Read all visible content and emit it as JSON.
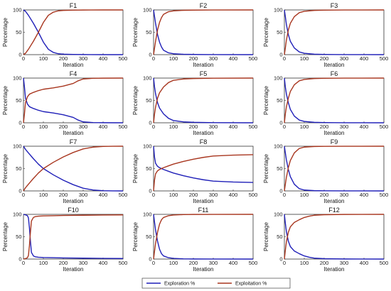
{
  "colors": {
    "exploration": "#1f1fb8",
    "exploitation": "#a8361f",
    "axis": "#333333"
  },
  "chart_data": [
    {
      "type": "line",
      "title": "F1",
      "xlabel": "Iteration",
      "ylabel": "Percentage",
      "xlim": [
        0,
        500
      ],
      "ylim": [
        0,
        100
      ],
      "xticks": [
        "0",
        "100",
        "200",
        "300",
        "400",
        "500"
      ],
      "yticks": [
        "0",
        "50",
        "100"
      ],
      "series": [
        {
          "name": "Exploration %",
          "x": [
            0,
            10,
            25,
            50,
            75,
            100,
            125,
            150,
            175,
            200,
            250,
            300,
            400,
            500
          ],
          "values": [
            100,
            97,
            88,
            70,
            50,
            28,
            12,
            5,
            2,
            1,
            0.5,
            0.2,
            0,
            0
          ]
        },
        {
          "name": "Exploitation %",
          "x": [
            0,
            10,
            25,
            50,
            75,
            100,
            125,
            150,
            175,
            200,
            250,
            300,
            400,
            500
          ],
          "values": [
            0,
            3,
            12,
            30,
            50,
            72,
            88,
            95,
            98,
            99,
            99.5,
            99.8,
            100,
            100
          ]
        }
      ]
    },
    {
      "type": "line",
      "title": "F2",
      "xlabel": "Iteration",
      "ylabel": "Percentage",
      "xlim": [
        0,
        500
      ],
      "ylim": [
        0,
        100
      ],
      "xticks": [
        "0",
        "100",
        "200",
        "300",
        "400",
        "500"
      ],
      "yticks": [
        "0",
        "50",
        "100"
      ],
      "series": [
        {
          "name": "Exploration %",
          "x": [
            0,
            5,
            10,
            20,
            30,
            40,
            50,
            75,
            100,
            150,
            200,
            300,
            500
          ],
          "values": [
            100,
            85,
            70,
            45,
            28,
            17,
            10,
            4,
            2,
            0.8,
            0.4,
            0.1,
            0
          ]
        },
        {
          "name": "Exploitation %",
          "x": [
            0,
            5,
            10,
            20,
            30,
            40,
            50,
            75,
            100,
            150,
            200,
            300,
            500
          ],
          "values": [
            0,
            15,
            30,
            55,
            72,
            83,
            90,
            96,
            98,
            99.2,
            99.6,
            99.9,
            100
          ]
        }
      ]
    },
    {
      "type": "line",
      "title": "F3",
      "xlabel": "Iteration",
      "ylabel": "Percentage",
      "xlim": [
        0,
        500
      ],
      "ylim": [
        0,
        100
      ],
      "xticks": [
        "0",
        "100",
        "200",
        "300",
        "400",
        "500"
      ],
      "yticks": [
        "0",
        "50",
        "100"
      ],
      "series": [
        {
          "name": "Exploration %",
          "x": [
            0,
            5,
            10,
            20,
            30,
            50,
            75,
            100,
            150,
            200,
            300,
            500
          ],
          "values": [
            100,
            85,
            68,
            45,
            30,
            15,
            6,
            3,
            1,
            0.5,
            0.1,
            0
          ]
        },
        {
          "name": "Exploitation %",
          "x": [
            0,
            5,
            10,
            20,
            30,
            50,
            75,
            100,
            150,
            200,
            300,
            500
          ],
          "values": [
            0,
            15,
            32,
            55,
            70,
            85,
            94,
            97,
            99,
            99.5,
            99.9,
            100
          ]
        }
      ]
    },
    {
      "type": "line",
      "title": "F4",
      "xlabel": "Iteration",
      "ylabel": "Percentage",
      "xlim": [
        0,
        500
      ],
      "ylim": [
        0,
        100
      ],
      "xticks": [
        "0",
        "100",
        "200",
        "300",
        "400",
        "500"
      ],
      "yticks": [
        "0",
        "50",
        "100"
      ],
      "series": [
        {
          "name": "Exploration %",
          "x": [
            0,
            5,
            10,
            20,
            30,
            50,
            75,
            100,
            150,
            200,
            250,
            275,
            300,
            350,
            400,
            500
          ],
          "values": [
            100,
            80,
            55,
            42,
            36,
            32,
            28,
            25,
            22,
            18,
            12,
            6,
            2,
            0.5,
            0.2,
            0
          ]
        },
        {
          "name": "Exploitation %",
          "x": [
            0,
            5,
            10,
            20,
            30,
            50,
            75,
            100,
            150,
            200,
            250,
            275,
            300,
            350,
            400,
            500
          ],
          "values": [
            0,
            20,
            45,
            58,
            64,
            68,
            72,
            75,
            78,
            82,
            88,
            94,
            98,
            99.5,
            99.8,
            100
          ]
        }
      ]
    },
    {
      "type": "line",
      "title": "F5",
      "xlabel": "Iteration",
      "ylabel": "Percentage",
      "xlim": [
        0,
        500
      ],
      "ylim": [
        0,
        100
      ],
      "xticks": [
        "0",
        "100",
        "200",
        "300",
        "400",
        "500"
      ],
      "yticks": [
        "0",
        "50",
        "100"
      ],
      "series": [
        {
          "name": "Exploration %",
          "x": [
            0,
            5,
            10,
            20,
            30,
            50,
            75,
            100,
            150,
            200,
            300,
            500
          ],
          "values": [
            100,
            80,
            65,
            45,
            33,
            20,
            10,
            5,
            2,
            1,
            0.3,
            0
          ]
        },
        {
          "name": "Exploitation %",
          "x": [
            0,
            5,
            10,
            20,
            30,
            50,
            75,
            100,
            150,
            200,
            300,
            500
          ],
          "values": [
            0,
            20,
            35,
            55,
            67,
            80,
            90,
            95,
            98,
            99,
            99.7,
            100
          ]
        }
      ]
    },
    {
      "type": "line",
      "title": "F6",
      "xlabel": "Iteration",
      "ylabel": "Percentage",
      "xlim": [
        0,
        500
      ],
      "ylim": [
        0,
        100
      ],
      "xticks": [
        "0",
        "100",
        "200",
        "300",
        "400",
        "500"
      ],
      "yticks": [
        "0",
        "50",
        "100"
      ],
      "series": [
        {
          "name": "Exploration %",
          "x": [
            0,
            5,
            10,
            20,
            30,
            50,
            75,
            100,
            150,
            200,
            300,
            500
          ],
          "values": [
            100,
            80,
            65,
            45,
            30,
            15,
            6,
            3,
            1,
            0.5,
            0.1,
            0
          ]
        },
        {
          "name": "Exploitation %",
          "x": [
            0,
            5,
            10,
            20,
            30,
            50,
            75,
            100,
            150,
            200,
            300,
            500
          ],
          "values": [
            0,
            20,
            35,
            55,
            70,
            85,
            94,
            97,
            99,
            99.5,
            99.9,
            100
          ]
        }
      ]
    },
    {
      "type": "line",
      "title": "F7",
      "xlabel": "Iteration",
      "ylabel": "Percentage",
      "xlim": [
        0,
        500
      ],
      "ylim": [
        0,
        100
      ],
      "xticks": [
        "0",
        "100",
        "200",
        "300",
        "400",
        "500"
      ],
      "yticks": [
        "0",
        "50",
        "100"
      ],
      "series": [
        {
          "name": "Exploration %",
          "x": [
            0,
            10,
            25,
            50,
            75,
            100,
            150,
            200,
            250,
            300,
            350,
            400,
            450,
            500
          ],
          "values": [
            100,
            93,
            85,
            72,
            60,
            50,
            36,
            24,
            14,
            6,
            2,
            0.5,
            0.1,
            0
          ]
        },
        {
          "name": "Exploitation %",
          "x": [
            0,
            10,
            25,
            50,
            75,
            100,
            150,
            200,
            250,
            300,
            350,
            400,
            450,
            500
          ],
          "values": [
            0,
            7,
            15,
            28,
            40,
            50,
            64,
            76,
            86,
            94,
            98,
            99.5,
            99.9,
            100
          ]
        }
      ]
    },
    {
      "type": "line",
      "title": "F8",
      "xlabel": "Iteration",
      "ylabel": "Percentage",
      "xlim": [
        0,
        500
      ],
      "ylim": [
        0,
        100
      ],
      "xticks": [
        "0",
        "100",
        "200",
        "300",
        "400",
        "500"
      ],
      "yticks": [
        "0",
        "50",
        "100"
      ],
      "series": [
        {
          "name": "Exploration %",
          "x": [
            0,
            5,
            10,
            20,
            30,
            50,
            75,
            100,
            150,
            200,
            250,
            300,
            400,
            500
          ],
          "values": [
            100,
            75,
            62,
            55,
            52,
            48,
            44,
            40,
            34,
            29,
            25,
            22,
            20,
            19
          ]
        },
        {
          "name": "Exploitation %",
          "x": [
            0,
            5,
            10,
            20,
            30,
            50,
            75,
            100,
            150,
            200,
            250,
            300,
            400,
            500
          ],
          "values": [
            0,
            25,
            38,
            45,
            48,
            52,
            56,
            60,
            66,
            71,
            75,
            78,
            80,
            81
          ]
        }
      ]
    },
    {
      "type": "line",
      "title": "F9",
      "xlabel": "Iteration",
      "ylabel": "Percentage",
      "xlim": [
        0,
        500
      ],
      "ylim": [
        0,
        100
      ],
      "xticks": [
        "0",
        "100",
        "200",
        "300",
        "400",
        "500"
      ],
      "yticks": [
        "0",
        "50",
        "100"
      ],
      "series": [
        {
          "name": "Exploration %",
          "x": [
            0,
            5,
            10,
            20,
            30,
            50,
            75,
            100,
            150,
            200,
            300,
            500
          ],
          "values": [
            100,
            85,
            70,
            48,
            32,
            15,
            5,
            2,
            0.6,
            0.3,
            0.1,
            0
          ]
        },
        {
          "name": "Exploitation %",
          "x": [
            0,
            5,
            10,
            20,
            30,
            50,
            75,
            100,
            150,
            200,
            300,
            500
          ],
          "values": [
            0,
            15,
            30,
            52,
            68,
            85,
            95,
            98,
            99.4,
            99.7,
            99.9,
            100
          ]
        }
      ]
    },
    {
      "type": "line",
      "title": "F10",
      "xlabel": "Iteration",
      "ylabel": "Percentage",
      "xlim": [
        0,
        500
      ],
      "ylim": [
        0,
        100
      ],
      "xticks": [
        "0",
        "100",
        "200",
        "300",
        "400",
        "500"
      ],
      "yticks": [
        "0",
        "50",
        "100"
      ],
      "series": [
        {
          "name": "Exploration %",
          "x": [
            0,
            10,
            20,
            25,
            30,
            35,
            40,
            50,
            60,
            75,
            100,
            150,
            200,
            300,
            400,
            500
          ],
          "values": [
            100,
            99,
            97,
            92,
            70,
            40,
            15,
            7,
            5,
            4,
            3.5,
            3,
            2.5,
            2,
            1.5,
            1.2
          ]
        },
        {
          "name": "Exploitation %",
          "x": [
            0,
            10,
            20,
            25,
            30,
            35,
            40,
            50,
            60,
            75,
            100,
            150,
            200,
            300,
            400,
            500
          ],
          "values": [
            0,
            1,
            3,
            8,
            30,
            60,
            85,
            93,
            95,
            96,
            96.5,
            97,
            97.5,
            98,
            98.5,
            98.8
          ]
        }
      ]
    },
    {
      "type": "line",
      "title": "F11",
      "xlabel": "Iteration",
      "ylabel": "Percentage",
      "xlim": [
        0,
        500
      ],
      "ylim": [
        0,
        100
      ],
      "xticks": [
        "0",
        "100",
        "200",
        "300",
        "400",
        "500"
      ],
      "yticks": [
        "0",
        "50",
        "100"
      ],
      "series": [
        {
          "name": "Exploration %",
          "x": [
            0,
            5,
            10,
            20,
            30,
            40,
            50,
            75,
            100,
            150,
            200,
            300,
            500
          ],
          "values": [
            100,
            82,
            65,
            40,
            22,
            12,
            7,
            3,
            1.5,
            0.5,
            0.2,
            0.1,
            0
          ]
        },
        {
          "name": "Exploitation %",
          "x": [
            0,
            5,
            10,
            20,
            30,
            40,
            50,
            75,
            100,
            150,
            200,
            300,
            500
          ],
          "values": [
            0,
            18,
            35,
            60,
            78,
            88,
            93,
            97,
            98.5,
            99.5,
            99.8,
            99.9,
            100
          ]
        }
      ]
    },
    {
      "type": "line",
      "title": "F12",
      "xlabel": "Iteration",
      "ylabel": "Percentage",
      "xlim": [
        0,
        500
      ],
      "ylim": [
        0,
        100
      ],
      "xticks": [
        "0",
        "100",
        "200",
        "300",
        "400",
        "500"
      ],
      "yticks": [
        "0",
        "50",
        "100"
      ],
      "series": [
        {
          "name": "Exploration %",
          "x": [
            0,
            5,
            10,
            20,
            30,
            50,
            75,
            100,
            125,
            150,
            200,
            300,
            500
          ],
          "values": [
            100,
            80,
            62,
            40,
            28,
            18,
            12,
            7,
            4,
            2,
            0.8,
            0.2,
            0
          ]
        },
        {
          "name": "Exploitation %",
          "x": [
            0,
            5,
            10,
            20,
            30,
            50,
            75,
            100,
            125,
            150,
            200,
            300,
            500
          ],
          "values": [
            0,
            20,
            38,
            60,
            72,
            82,
            88,
            93,
            96,
            98,
            99.2,
            99.8,
            100
          ]
        }
      ]
    }
  ],
  "legend": {
    "items": [
      {
        "label": "Exploration %",
        "color": "#1f1fb8"
      },
      {
        "label": "Exploitation %",
        "color": "#a8361f"
      }
    ],
    "placement": "bottom-center"
  }
}
